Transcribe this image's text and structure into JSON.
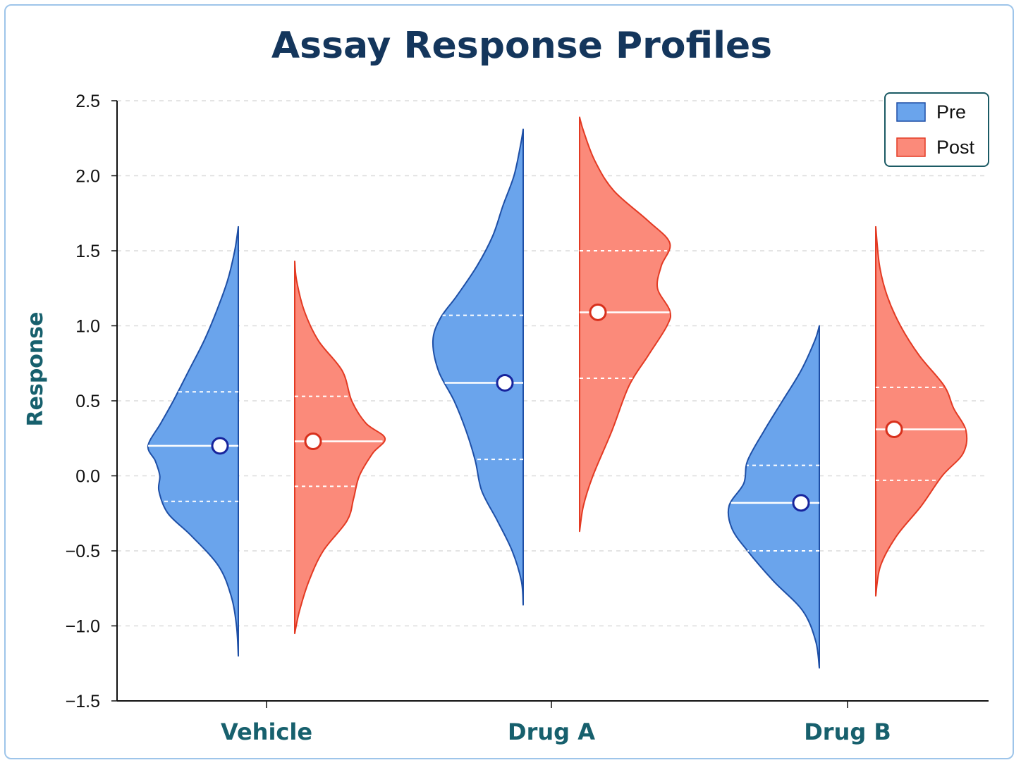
{
  "chart_data": {
    "type": "violin",
    "title": "Assay Response Profiles",
    "xlabel": "",
    "ylabel": "Response",
    "ylim": [
      -1.5,
      2.5
    ],
    "yticks": [
      "−1.5",
      "−1.0",
      "−0.5",
      "0.0",
      "0.5",
      "1.0",
      "1.5",
      "2.0",
      "2.5"
    ],
    "ytick_values": [
      -1.5,
      -1.0,
      -0.5,
      0.0,
      0.5,
      1.0,
      1.5,
      2.0,
      2.5
    ],
    "categories": [
      "Vehicle",
      "Drug A",
      "Drug B"
    ],
    "grid": "horizontal-dashed",
    "legend_position": "top-right",
    "series": [
      {
        "name": "Pre",
        "color": "#6aa4ec",
        "edge": "#1e4fa6",
        "side": "left",
        "groups": [
          {
            "min": -1.2,
            "max": 1.66,
            "q1": -0.17,
            "median": 0.2,
            "q3": 0.56,
            "mean": 0.2,
            "profile": [
              [
                -1.2,
                0
              ],
              [
                -1.0,
                0.02
              ],
              [
                -0.8,
                0.08
              ],
              [
                -0.6,
                0.22
              ],
              [
                -0.4,
                0.52
              ],
              [
                -0.25,
                0.78
              ],
              [
                -0.1,
                0.88
              ],
              [
                0.0,
                0.87
              ],
              [
                0.1,
                0.92
              ],
              [
                0.2,
                1.0
              ],
              [
                0.35,
                0.86
              ],
              [
                0.5,
                0.72
              ],
              [
                0.7,
                0.55
              ],
              [
                0.9,
                0.38
              ],
              [
                1.1,
                0.24
              ],
              [
                1.3,
                0.12
              ],
              [
                1.5,
                0.04
              ],
              [
                1.66,
                0
              ]
            ]
          },
          {
            "min": -0.86,
            "max": 2.31,
            "q1": 0.11,
            "median": 0.62,
            "q3": 1.07,
            "mean": 0.62,
            "profile": [
              [
                -0.86,
                0
              ],
              [
                -0.7,
                0.02
              ],
              [
                -0.5,
                0.12
              ],
              [
                -0.3,
                0.28
              ],
              [
                -0.1,
                0.45
              ],
              [
                0.1,
                0.52
              ],
              [
                0.3,
                0.62
              ],
              [
                0.5,
                0.75
              ],
              [
                0.7,
                0.92
              ],
              [
                0.9,
                0.98
              ],
              [
                1.05,
                0.9
              ],
              [
                1.2,
                0.72
              ],
              [
                1.4,
                0.5
              ],
              [
                1.6,
                0.33
              ],
              [
                1.8,
                0.22
              ],
              [
                2.0,
                0.1
              ],
              [
                2.2,
                0.03
              ],
              [
                2.31,
                0
              ]
            ]
          },
          {
            "min": -1.28,
            "max": 1.0,
            "q1": -0.5,
            "median": -0.18,
            "q3": 0.07,
            "mean": -0.18,
            "profile": [
              [
                -1.28,
                0
              ],
              [
                -1.1,
                0.04
              ],
              [
                -0.9,
                0.18
              ],
              [
                -0.7,
                0.5
              ],
              [
                -0.5,
                0.78
              ],
              [
                -0.35,
                0.95
              ],
              [
                -0.2,
                0.98
              ],
              [
                -0.05,
                0.82
              ],
              [
                0.1,
                0.78
              ],
              [
                0.3,
                0.6
              ],
              [
                0.5,
                0.4
              ],
              [
                0.7,
                0.2
              ],
              [
                0.9,
                0.05
              ],
              [
                1.0,
                0
              ]
            ]
          }
        ]
      },
      {
        "name": "Post",
        "color": "#fb8a7a",
        "edge": "#e33a23",
        "side": "right",
        "groups": [
          {
            "min": -1.05,
            "max": 1.43,
            "q1": -0.07,
            "median": 0.23,
            "q3": 0.53,
            "mean": 0.23,
            "profile": [
              [
                -1.05,
                0
              ],
              [
                -0.9,
                0.05
              ],
              [
                -0.7,
                0.15
              ],
              [
                -0.5,
                0.3
              ],
              [
                -0.3,
                0.55
              ],
              [
                -0.15,
                0.62
              ],
              [
                0.0,
                0.68
              ],
              [
                0.15,
                0.82
              ],
              [
                0.25,
                0.95
              ],
              [
                0.35,
                0.75
              ],
              [
                0.5,
                0.6
              ],
              [
                0.7,
                0.5
              ],
              [
                0.9,
                0.25
              ],
              [
                1.1,
                0.1
              ],
              [
                1.3,
                0.02
              ],
              [
                1.43,
                0
              ]
            ]
          },
          {
            "min": -0.37,
            "max": 2.39,
            "q1": 0.65,
            "median": 1.09,
            "q3": 1.5,
            "mean": 1.09,
            "profile": [
              [
                -0.37,
                0
              ],
              [
                -0.2,
                0.04
              ],
              [
                0.0,
                0.14
              ],
              [
                0.3,
                0.34
              ],
              [
                0.6,
                0.52
              ],
              [
                0.8,
                0.72
              ],
              [
                1.0,
                0.92
              ],
              [
                1.1,
                0.95
              ],
              [
                1.25,
                0.82
              ],
              [
                1.4,
                0.86
              ],
              [
                1.55,
                0.95
              ],
              [
                1.7,
                0.72
              ],
              [
                1.9,
                0.36
              ],
              [
                2.1,
                0.16
              ],
              [
                2.3,
                0.04
              ],
              [
                2.39,
                0
              ]
            ]
          },
          {
            "min": -0.8,
            "max": 1.66,
            "q1": -0.03,
            "median": 0.31,
            "q3": 0.59,
            "mean": 0.31,
            "profile": [
              [
                -0.8,
                0
              ],
              [
                -0.6,
                0.05
              ],
              [
                -0.4,
                0.22
              ],
              [
                -0.2,
                0.48
              ],
              [
                0.0,
                0.7
              ],
              [
                0.15,
                0.92
              ],
              [
                0.3,
                0.95
              ],
              [
                0.45,
                0.82
              ],
              [
                0.6,
                0.72
              ],
              [
                0.8,
                0.46
              ],
              [
                1.0,
                0.26
              ],
              [
                1.2,
                0.12
              ],
              [
                1.4,
                0.04
              ],
              [
                1.66,
                0
              ]
            ]
          }
        ]
      }
    ]
  }
}
